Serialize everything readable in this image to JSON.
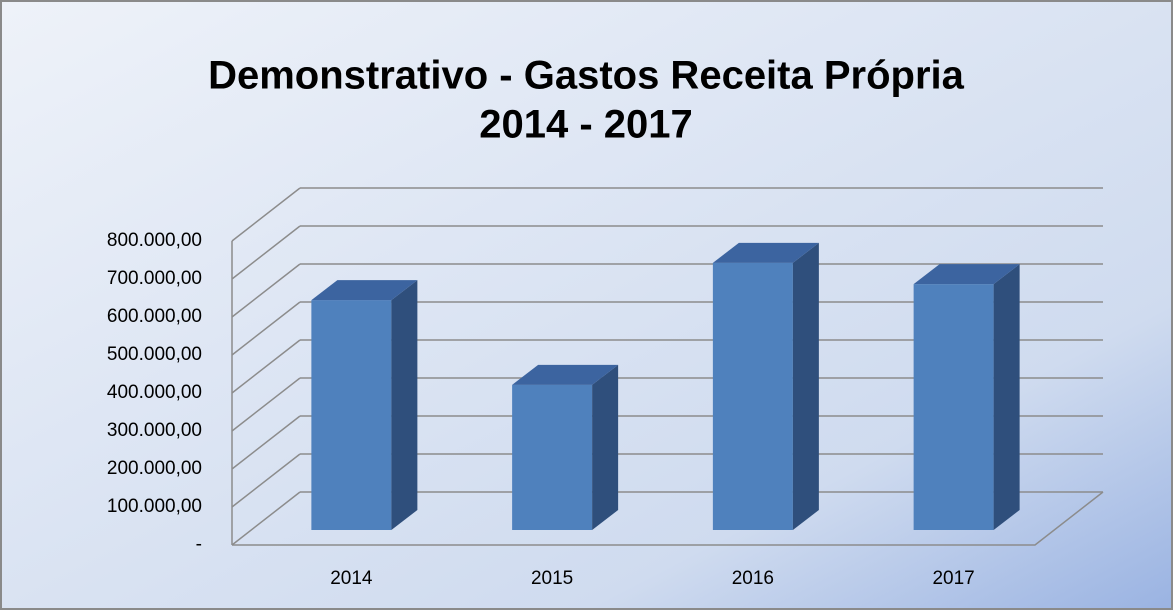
{
  "chart_data": {
    "type": "bar3d",
    "title": [
      "Demonstrativo - Gastos Receita Própria",
      "2014 - 2017"
    ],
    "categories": [
      "2014",
      "2015",
      "2016",
      "2017"
    ],
    "values": [
      605000,
      382000,
      703000,
      647000
    ],
    "color": "#4f81bd",
    "ylim": [
      0,
      800000
    ],
    "yticks": [
      {
        "value": 0,
        "label": "-"
      },
      {
        "value": 100000,
        "label": "100.000,00"
      },
      {
        "value": 200000,
        "label": "200.000,00"
      },
      {
        "value": 300000,
        "label": "300.000,00"
      },
      {
        "value": 400000,
        "label": "400.000,00"
      },
      {
        "value": 500000,
        "label": "500.000,00"
      },
      {
        "value": 600000,
        "label": "600.000,00"
      },
      {
        "value": 700000,
        "label": "700.000,00"
      },
      {
        "value": 800000,
        "label": "800.000,00"
      }
    ],
    "grid": true
  }
}
